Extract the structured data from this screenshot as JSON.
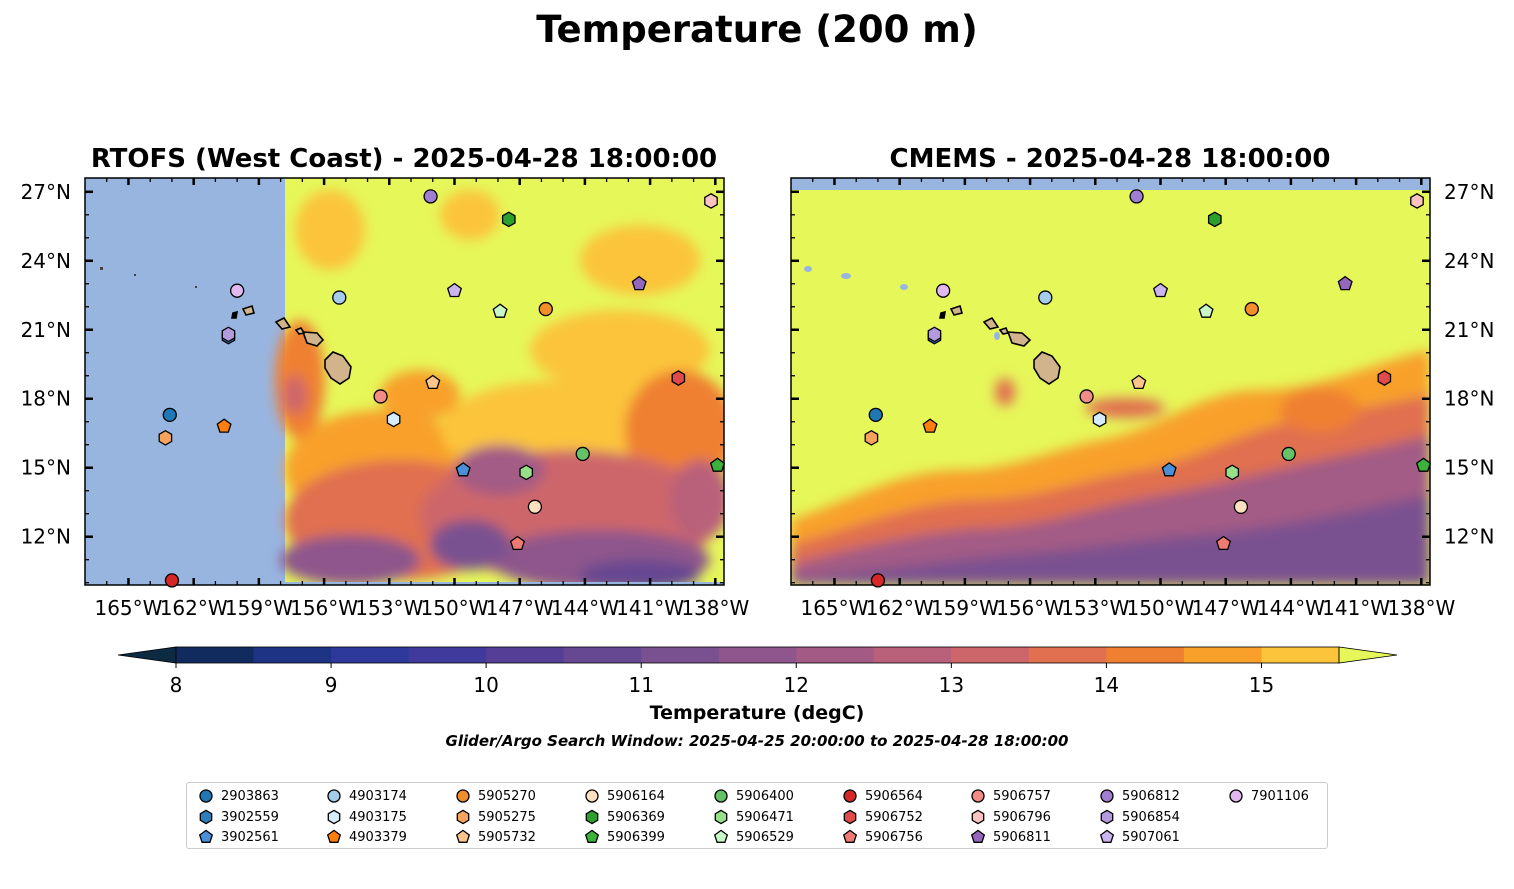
{
  "suptitle": "Temperature (200 m)",
  "panels": [
    {
      "title": "RTOFS (West Coast) - 2025-04-28 18:00:00",
      "side": "left"
    },
    {
      "title": "CMEMS - 2025-04-28 18:00:00",
      "side": "right"
    }
  ],
  "colorbar": {
    "label": "Temperature (degC)",
    "ticks": [
      "8",
      "9",
      "10",
      "11",
      "12",
      "13",
      "14",
      "15"
    ],
    "levels": [
      8.0,
      8.5,
      9.0,
      9.5,
      10.0,
      10.5,
      11.0,
      11.5,
      12.0,
      12.5,
      13.0,
      13.5,
      14.0,
      14.5,
      15.0,
      15.5
    ],
    "colors": [
      "#0c2a41",
      "#122b5e",
      "#1f3385",
      "#2d3a9b",
      "#403a9c",
      "#553f96",
      "#664791",
      "#7a5190",
      "#8e568c",
      "#a35b85",
      "#b9607a",
      "#cd666a",
      "#e0704f",
      "#ef8031",
      "#f8a02a",
      "#fbc43a",
      "#f6df4a",
      "#e6f75a"
    ],
    "under_color": "#0c2a41",
    "over_color": "#e6f75a"
  },
  "subtitle": "Glider/Argo Search Window: 2025-04-25 20:00:00 to 2025-04-28 18:00:00",
  "chart_data": {
    "type": "scatter",
    "map_extent": {
      "lon": [
        -167,
        -137.6
      ],
      "lat": [
        9.9,
        27.6
      ]
    },
    "xticks": [
      "165°W",
      "162°W",
      "159°W",
      "156°W",
      "153°W",
      "150°W",
      "147°W",
      "144°W",
      "141°W",
      "138°W"
    ],
    "yticks": [
      "27°N",
      "24°N",
      "21°N",
      "18°N",
      "15°N",
      "12°N"
    ],
    "xtick_values": [
      -165,
      -162,
      -159,
      -156,
      -153,
      -150,
      -147,
      -144,
      -141,
      -138
    ],
    "ytick_values": [
      27,
      24,
      21,
      18,
      15,
      12
    ],
    "land_color": "#d2b48c",
    "missing_color": "#98b5e0",
    "series": [
      {
        "name": "2903863",
        "marker": "circle",
        "color": "#1f77b4",
        "lon": -163.1,
        "lat": 17.3
      },
      {
        "name": "3902559",
        "marker": "hexagon",
        "color": "#2e7ebc",
        "lon": -160.4,
        "lat": 20.7
      },
      {
        "name": "3902561",
        "marker": "pentagon",
        "color": "#4a90d9",
        "lon": -149.6,
        "lat": 14.9
      },
      {
        "name": "4903174",
        "marker": "circle",
        "color": "#a5cdeb",
        "lon": -155.3,
        "lat": 22.4
      },
      {
        "name": "4903175",
        "marker": "hexagon",
        "color": "#d6ecfa",
        "lon": -152.8,
        "lat": 17.1
      },
      {
        "name": "4903379",
        "marker": "pentagon",
        "color": "#ff7f0e",
        "lon": -160.6,
        "lat": 16.8
      },
      {
        "name": "5905270",
        "marker": "circle",
        "color": "#f28e2b",
        "lon": -145.8,
        "lat": 21.9
      },
      {
        "name": "5905275",
        "marker": "hexagon",
        "color": "#f7a35c",
        "lon": -163.3,
        "lat": 16.3
      },
      {
        "name": "5905732",
        "marker": "pentagon",
        "color": "#fdc48b",
        "lon": -151.0,
        "lat": 18.7
      },
      {
        "name": "5906164",
        "marker": "circle",
        "color": "#fde0c0",
        "lon": -146.3,
        "lat": 13.3
      },
      {
        "name": "5906369",
        "marker": "hexagon",
        "color": "#2ca02c",
        "lon": -147.5,
        "lat": 25.8
      },
      {
        "name": "5906399",
        "marker": "pentagon",
        "color": "#3bb33b",
        "lon": -137.9,
        "lat": 15.1
      },
      {
        "name": "5906400",
        "marker": "circle",
        "color": "#66c266",
        "lon": -144.1,
        "lat": 15.6
      },
      {
        "name": "5906471",
        "marker": "hexagon",
        "color": "#98df8a",
        "lon": -146.7,
        "lat": 14.8
      },
      {
        "name": "5906529",
        "marker": "pentagon",
        "color": "#c8f7c8",
        "lon": -147.9,
        "lat": 21.8
      },
      {
        "name": "5906564",
        "marker": "circle",
        "color": "#d62728",
        "lon": -163.0,
        "lat": 10.1
      },
      {
        "name": "5906752",
        "marker": "hexagon",
        "color": "#e04a4a",
        "lon": -139.7,
        "lat": 18.9
      },
      {
        "name": "5906756",
        "marker": "pentagon",
        "color": "#ef7a72",
        "lon": -147.1,
        "lat": 11.7
      },
      {
        "name": "5906757",
        "marker": "circle",
        "color": "#f08c84",
        "lon": -153.4,
        "lat": 18.1
      },
      {
        "name": "5906796",
        "marker": "hexagon",
        "color": "#fbc4c0",
        "lon": -138.2,
        "lat": 26.6
      },
      {
        "name": "5906811",
        "marker": "pentagon",
        "color": "#9467bd",
        "lon": -141.5,
        "lat": 23.0
      },
      {
        "name": "5906812",
        "marker": "circle",
        "color": "#a07fd2",
        "lon": -151.1,
        "lat": 26.8
      },
      {
        "name": "5906854",
        "marker": "hexagon",
        "color": "#b59ae0",
        "lon": -160.4,
        "lat": 20.8
      },
      {
        "name": "5907061",
        "marker": "pentagon",
        "color": "#cbb4ef",
        "lon": -150.0,
        "lat": 22.7
      },
      {
        "name": "7901106",
        "marker": "circle",
        "color": "#e2b9ef",
        "lon": -160.0,
        "lat": 22.7
      }
    ]
  }
}
